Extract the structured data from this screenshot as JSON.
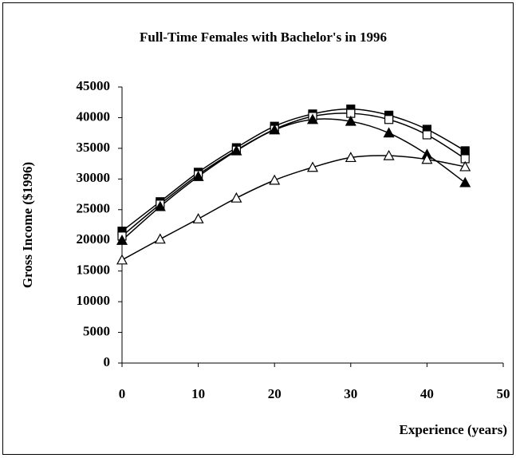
{
  "chart_data": {
    "type": "line",
    "title": "Full-Time Females with Bachelor's in 1996",
    "x_label": "Experience (years)",
    "y_label": "Gross Income ($1996)",
    "x": [
      0,
      5,
      10,
      15,
      20,
      25,
      30,
      35,
      40,
      45
    ],
    "xlim": [
      0,
      50
    ],
    "xticks": [
      0,
      10,
      20,
      30,
      40,
      50
    ],
    "ylim": [
      0,
      45000
    ],
    "yticks": [
      0,
      5000,
      10000,
      15000,
      20000,
      25000,
      30000,
      35000,
      40000,
      45000
    ],
    "grid": false,
    "series": [
      {
        "color": "#000000",
        "marker": "square",
        "marker_fill": "#000000",
        "values": [
          21500,
          26300,
          31100,
          35100,
          38600,
          40600,
          41400,
          40400,
          38100,
          34600
        ]
      },
      {
        "color": "#000000",
        "marker": "square",
        "marker_fill": "#ffffff",
        "values": [
          20700,
          25900,
          30700,
          34700,
          38100,
          40200,
          40700,
          39700,
          37200,
          33300
        ]
      },
      {
        "color": "#000000",
        "marker": "triangle",
        "marker_fill": "#000000",
        "values": [
          20000,
          25500,
          30400,
          34600,
          38000,
          39700,
          39400,
          37500,
          34000,
          29400
        ]
      },
      {
        "color": "#000000",
        "marker": "triangle",
        "marker_fill": "#ffffff",
        "values": [
          16800,
          20200,
          23500,
          26900,
          29800,
          31900,
          33500,
          33800,
          33200,
          32000
        ]
      }
    ]
  }
}
